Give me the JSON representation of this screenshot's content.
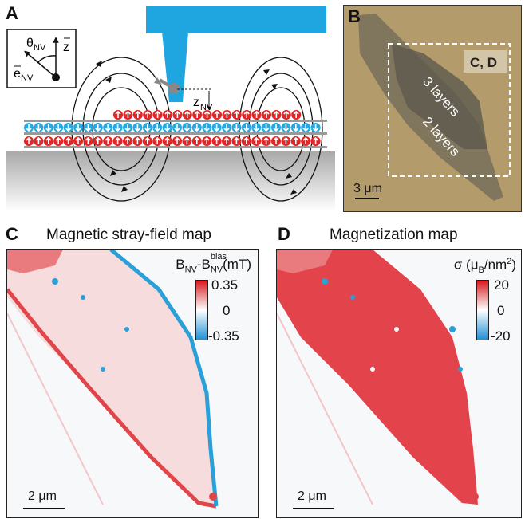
{
  "panels": {
    "a": {
      "letter": "A",
      "theta_label": "θ",
      "theta_sub": "NV",
      "z_label": "z",
      "e_label": "e",
      "e_sub": "NV",
      "znv_label": "z",
      "znv_sub": "NV"
    },
    "b": {
      "letter": "B",
      "box_label": "C, D",
      "label_3": "3 layers",
      "label_2": "2 layers",
      "scale": "3 μm"
    },
    "c": {
      "letter": "C",
      "title": "Magnetic stray-field map",
      "cb_label_main": "B",
      "cb_label_sub1": "NV",
      "cb_label_mid": "-B",
      "cb_label_sub2": "NV",
      "cb_label_sup": "bias",
      "cb_unit": "(mT)",
      "ticks": [
        "0.35",
        "0",
        "-0.35"
      ],
      "scale": "2 μm"
    },
    "d": {
      "letter": "D",
      "title": "Magnetization map",
      "cb_label": "σ (μ",
      "cb_label_sub": "B",
      "cb_label_end": "/nm",
      "cb_label_sup": "2",
      "cb_label_close": ")",
      "ticks": [
        "20",
        "0",
        "-20"
      ],
      "scale": "2 μm"
    }
  },
  "colors": {
    "tip": "#1fa6e0",
    "spin_red": "#e02626",
    "spin_blue": "#2aa7e0",
    "substrate_top": "#b5b5b5",
    "optical_bg": "#b39a6a",
    "map_red": "#e0454a",
    "map_blue": "#2a9fd8"
  }
}
